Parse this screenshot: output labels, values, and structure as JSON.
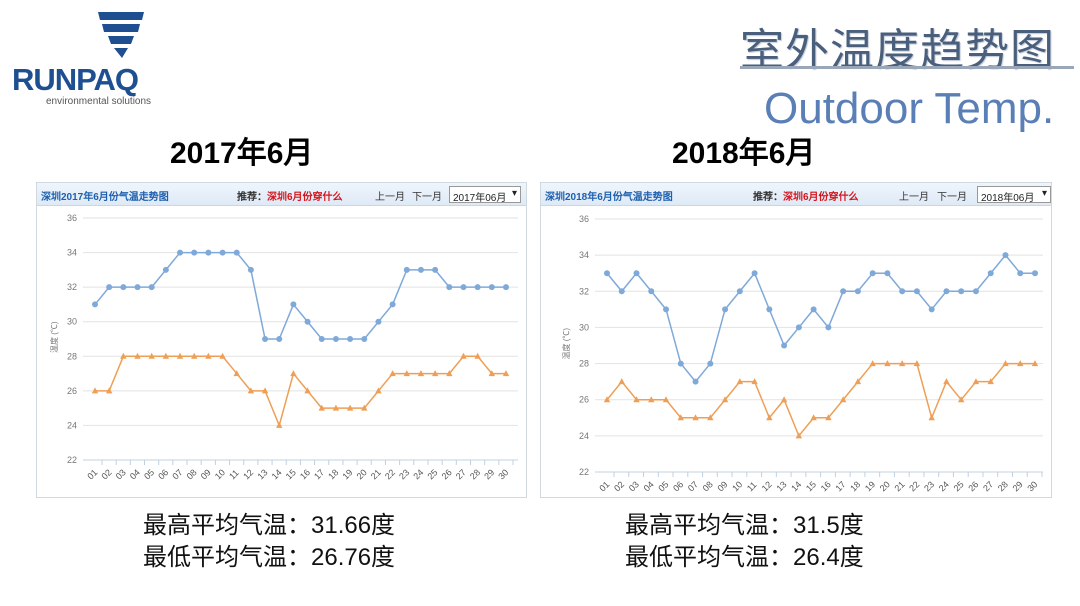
{
  "logo": {
    "name": "RUNPAQ",
    "tagline": "environmental solutions"
  },
  "title": {
    "cn": "室外温度趋势图",
    "en": "Outdoor Temp."
  },
  "panels": [
    {
      "year_label": "2017年6月",
      "header": {
        "title": "深圳2017年6月份气温走势图",
        "rec_prefix": "推荐：",
        "rec_link": "深圳6月份穿什么",
        "prev": "上一月",
        "next": "下一月",
        "select": "2017年06月"
      },
      "stats": {
        "high": "最高平均气温：31.66度",
        "low": "最低平均气温：26.76度"
      }
    },
    {
      "year_label": "2018年6月",
      "header": {
        "title": "深圳2018年6月份气温走势图",
        "rec_prefix": "推荐：",
        "rec_link": "深圳6月份穿什么",
        "prev": "上一月",
        "next": "下一月",
        "select": "2018年06月"
      },
      "stats": {
        "high": "最高平均气温：31.5度",
        "low": "最低平均气温：26.4度"
      }
    }
  ],
  "chart_data": [
    {
      "type": "line",
      "ylabel": "温度 (℃)",
      "ylim": [
        22,
        36
      ],
      "yticks": [
        22,
        24,
        26,
        28,
        30,
        32,
        34,
        36
      ],
      "categories": [
        "01",
        "02",
        "03",
        "04",
        "05",
        "06",
        "07",
        "08",
        "09",
        "10",
        "11",
        "12",
        "13",
        "14",
        "15",
        "16",
        "17",
        "18",
        "19",
        "20",
        "21",
        "22",
        "23",
        "24",
        "25",
        "26",
        "27",
        "28",
        "29",
        "30"
      ],
      "colors": {
        "high": "#7fa9d9",
        "low": "#ee9f55"
      },
      "series": [
        {
          "name": "high",
          "values": [
            31,
            32,
            32,
            32,
            32,
            33,
            34,
            34,
            34,
            34,
            34,
            33,
            29,
            29,
            31,
            30,
            29,
            29,
            29,
            29,
            30,
            31,
            33,
            33,
            33,
            32,
            32,
            32,
            32,
            32
          ]
        },
        {
          "name": "low",
          "values": [
            26,
            26,
            28,
            28,
            28,
            28,
            28,
            28,
            28,
            28,
            27,
            26,
            26,
            24,
            27,
            26,
            25,
            25,
            25,
            25,
            26,
            27,
            27,
            27,
            27,
            27,
            28,
            28,
            27,
            27
          ]
        }
      ]
    },
    {
      "type": "line",
      "ylabel": "温度 (℃)",
      "ylim": [
        22,
        36
      ],
      "yticks": [
        22,
        24,
        26,
        28,
        30,
        32,
        34,
        36
      ],
      "categories": [
        "01",
        "02",
        "03",
        "04",
        "05",
        "06",
        "07",
        "08",
        "09",
        "10",
        "11",
        "12",
        "13",
        "14",
        "15",
        "16",
        "17",
        "18",
        "19",
        "20",
        "21",
        "22",
        "23",
        "24",
        "25",
        "26",
        "27",
        "28",
        "29",
        "30"
      ],
      "colors": {
        "high": "#7fa9d9",
        "low": "#ee9f55"
      },
      "series": [
        {
          "name": "high",
          "values": [
            33,
            32,
            33,
            32,
            31,
            28,
            27,
            28,
            31,
            32,
            33,
            31,
            29,
            30,
            31,
            30,
            32,
            32,
            33,
            33,
            32,
            32,
            31,
            32,
            32,
            32,
            33,
            34,
            33,
            33
          ]
        },
        {
          "name": "low",
          "values": [
            26,
            27,
            26,
            26,
            26,
            25,
            25,
            25,
            26,
            27,
            27,
            25,
            26,
            24,
            25,
            25,
            26,
            27,
            28,
            28,
            28,
            28,
            25,
            27,
            26,
            27,
            27,
            28,
            28,
            28
          ]
        }
      ]
    }
  ]
}
